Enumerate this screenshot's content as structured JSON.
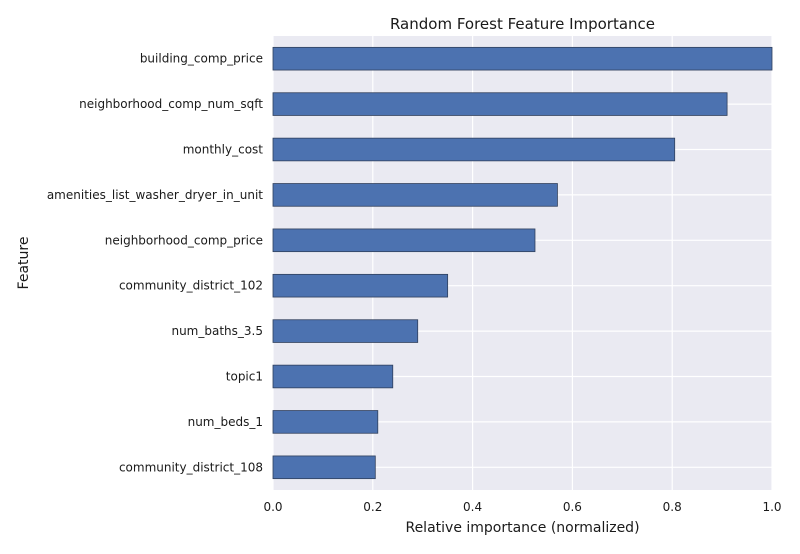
{
  "chart_data": {
    "type": "bar",
    "orientation": "horizontal",
    "title": "Random Forest Feature Importance",
    "xlabel": "Relative importance (normalized)",
    "ylabel": "Feature",
    "xlim": [
      0.0,
      1.0
    ],
    "x_ticks": [
      "0.0",
      "0.2",
      "0.4",
      "0.6",
      "0.8",
      "1.0"
    ],
    "grid": true,
    "categories": [
      "building_comp_price",
      "neighborhood_comp_num_sqft",
      "monthly_cost",
      "amenities_list_washer_dryer_in_unit",
      "neighborhood_comp_price",
      "community_district_102",
      "num_baths_3.5",
      "topic1",
      "num_beds_1",
      "community_district_108"
    ],
    "values": [
      1.0,
      0.91,
      0.805,
      0.57,
      0.525,
      0.35,
      0.29,
      0.24,
      0.21,
      0.205
    ],
    "colors": {
      "plot_background": "#EAEAF2",
      "bar_fill": "#4C72B0",
      "bar_edge": "#2f3f5c",
      "grid": "#FFFFFF"
    }
  }
}
